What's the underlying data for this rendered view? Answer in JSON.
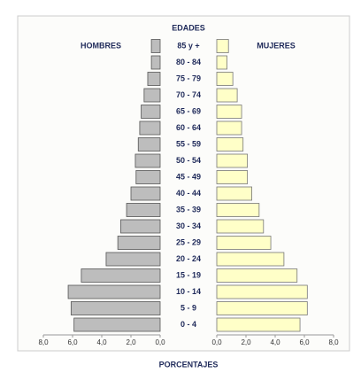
{
  "chart_data": {
    "type": "population_pyramid",
    "title": "EDADES",
    "x_label": "PORCENTAJES",
    "categories": [
      "85 y +",
      "80 - 84",
      "75 - 79",
      "70 - 74",
      "65 - 69",
      "60 - 64",
      "55 - 59",
      "50 - 54",
      "45 - 49",
      "40 - 44",
      "35 - 39",
      "30 - 34",
      "25 - 29",
      "20 - 24",
      "15 - 19",
      "10 - 14",
      "5 - 9",
      "0 - 4"
    ],
    "series": [
      {
        "name": "HOMBRES",
        "color": "#bdbdbd",
        "values": [
          0.6,
          0.6,
          0.85,
          1.1,
          1.3,
          1.4,
          1.5,
          1.7,
          1.65,
          2.0,
          2.3,
          2.7,
          2.9,
          3.7,
          5.4,
          6.3,
          6.1,
          5.9
        ]
      },
      {
        "name": "MUJERES",
        "color": "#ffffc8",
        "values": [
          0.8,
          0.7,
          1.1,
          1.4,
          1.7,
          1.7,
          1.8,
          2.1,
          2.1,
          2.4,
          2.9,
          3.2,
          3.7,
          4.6,
          5.5,
          6.2,
          6.2,
          5.7
        ]
      }
    ],
    "xlim": [
      0,
      8
    ],
    "xticks": [
      {
        "value": 0,
        "label": "0,0"
      },
      {
        "value": 2,
        "label": "2,0"
      },
      {
        "value": 4,
        "label": "4,0"
      },
      {
        "value": 6,
        "label": "6,0"
      },
      {
        "value": 8,
        "label": "8,0"
      }
    ]
  }
}
